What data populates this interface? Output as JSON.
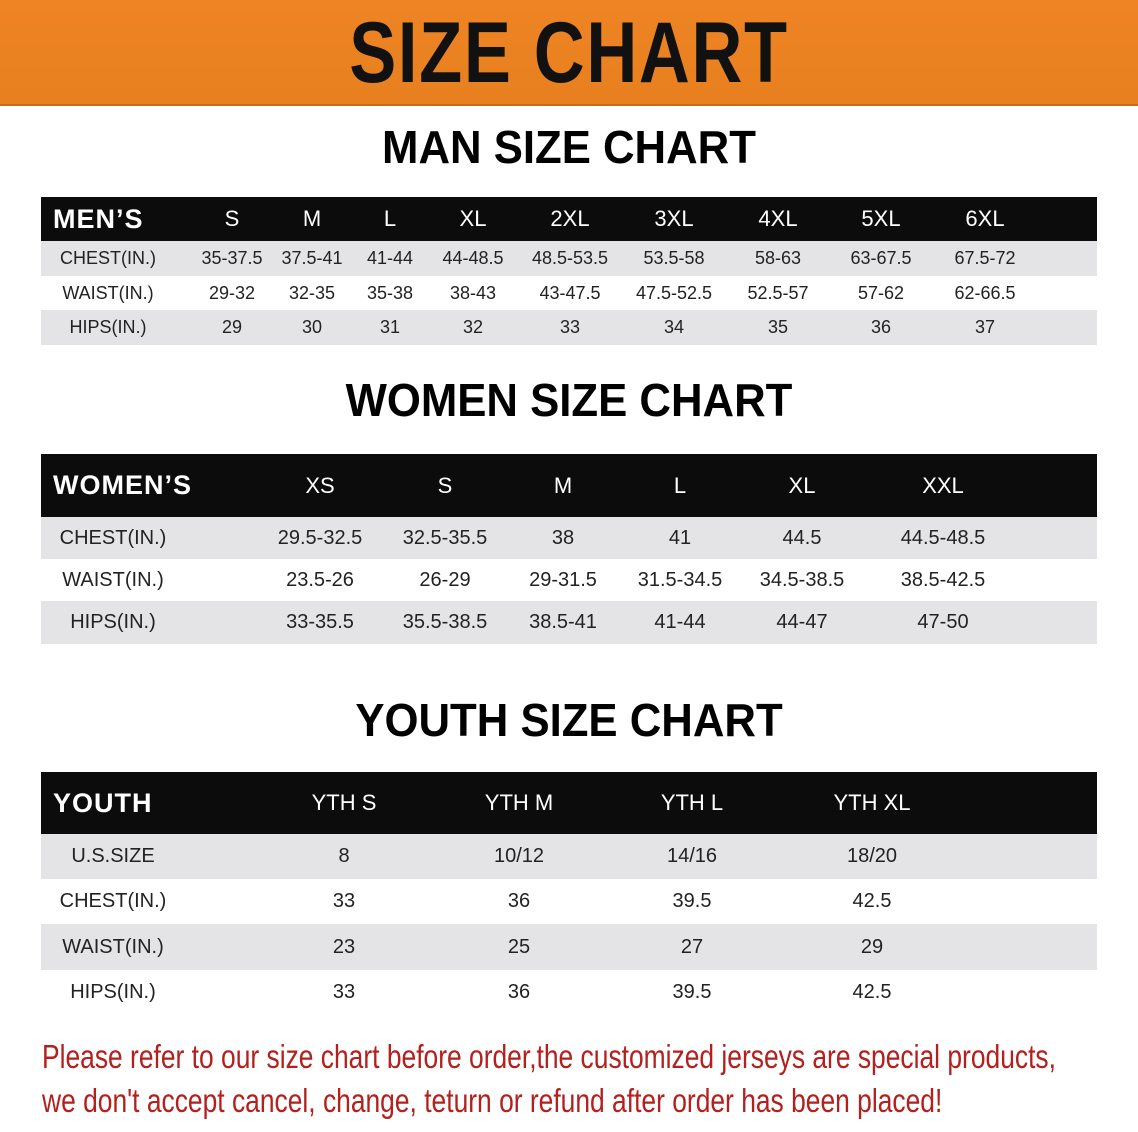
{
  "banner": {
    "title": "SIZE CHART",
    "color": "#ec8322"
  },
  "note_color": "#b3201e",
  "tables": [
    {
      "title": "MAN SIZE CHART",
      "header": [
        "MEN’S",
        "S",
        "M",
        "L",
        "XL",
        "2XL",
        "3XL",
        "4XL",
        "5XL",
        "6XL"
      ],
      "rows": [
        [
          "CHEST(IN.)",
          "35-37.5",
          "37.5-41",
          "41-44",
          "44-48.5",
          "48.5-53.5",
          "53.5-58",
          "58-63",
          "63-67.5",
          "67.5-72"
        ],
        [
          "WAIST(IN.)",
          "29-32",
          "32-35",
          "35-38",
          "38-43",
          "43-47.5",
          "47.5-52.5",
          "52.5-57",
          "57-62",
          "62-66.5"
        ],
        [
          "HIPS(IN.)",
          "29",
          "30",
          "31",
          "32",
          "33",
          "34",
          "35",
          "36",
          "37"
        ]
      ]
    },
    {
      "title": "WOMEN SIZE CHART",
      "header": [
        "WOMEN’S",
        "XS",
        "S",
        "M",
        "L",
        "XL",
        "XXL"
      ],
      "rows": [
        [
          "CHEST(IN.)",
          "29.5-32.5",
          "32.5-35.5",
          "38",
          "41",
          "44.5",
          "44.5-48.5"
        ],
        [
          "WAIST(IN.)",
          "23.5-26",
          "26-29",
          "29-31.5",
          "31.5-34.5",
          "34.5-38.5",
          "38.5-42.5"
        ],
        [
          "HIPS(IN.)",
          "33-35.5",
          "35.5-38.5",
          "38.5-41",
          "41-44",
          "44-47",
          "47-50"
        ]
      ]
    },
    {
      "title": "YOUTH SIZE CHART",
      "header": [
        "YOUTH",
        "YTH S",
        "YTH M",
        "YTH L",
        "YTH XL"
      ],
      "rows": [
        [
          "U.S.SIZE",
          "8",
          "10/12",
          "14/16",
          "18/20"
        ],
        [
          "CHEST(IN.)",
          "33",
          "36",
          "39.5",
          "42.5"
        ],
        [
          "WAIST(IN.)",
          "23",
          "25",
          "27",
          "29"
        ],
        [
          "HIPS(IN.)",
          "33",
          "36",
          "39.5",
          "42.5"
        ]
      ]
    }
  ],
  "notice": [
    "Please refer to our size chart before order,the customized jerseys are special products,",
    "we don't accept cancel, change, teturn or refund after order has been placed!"
  ]
}
